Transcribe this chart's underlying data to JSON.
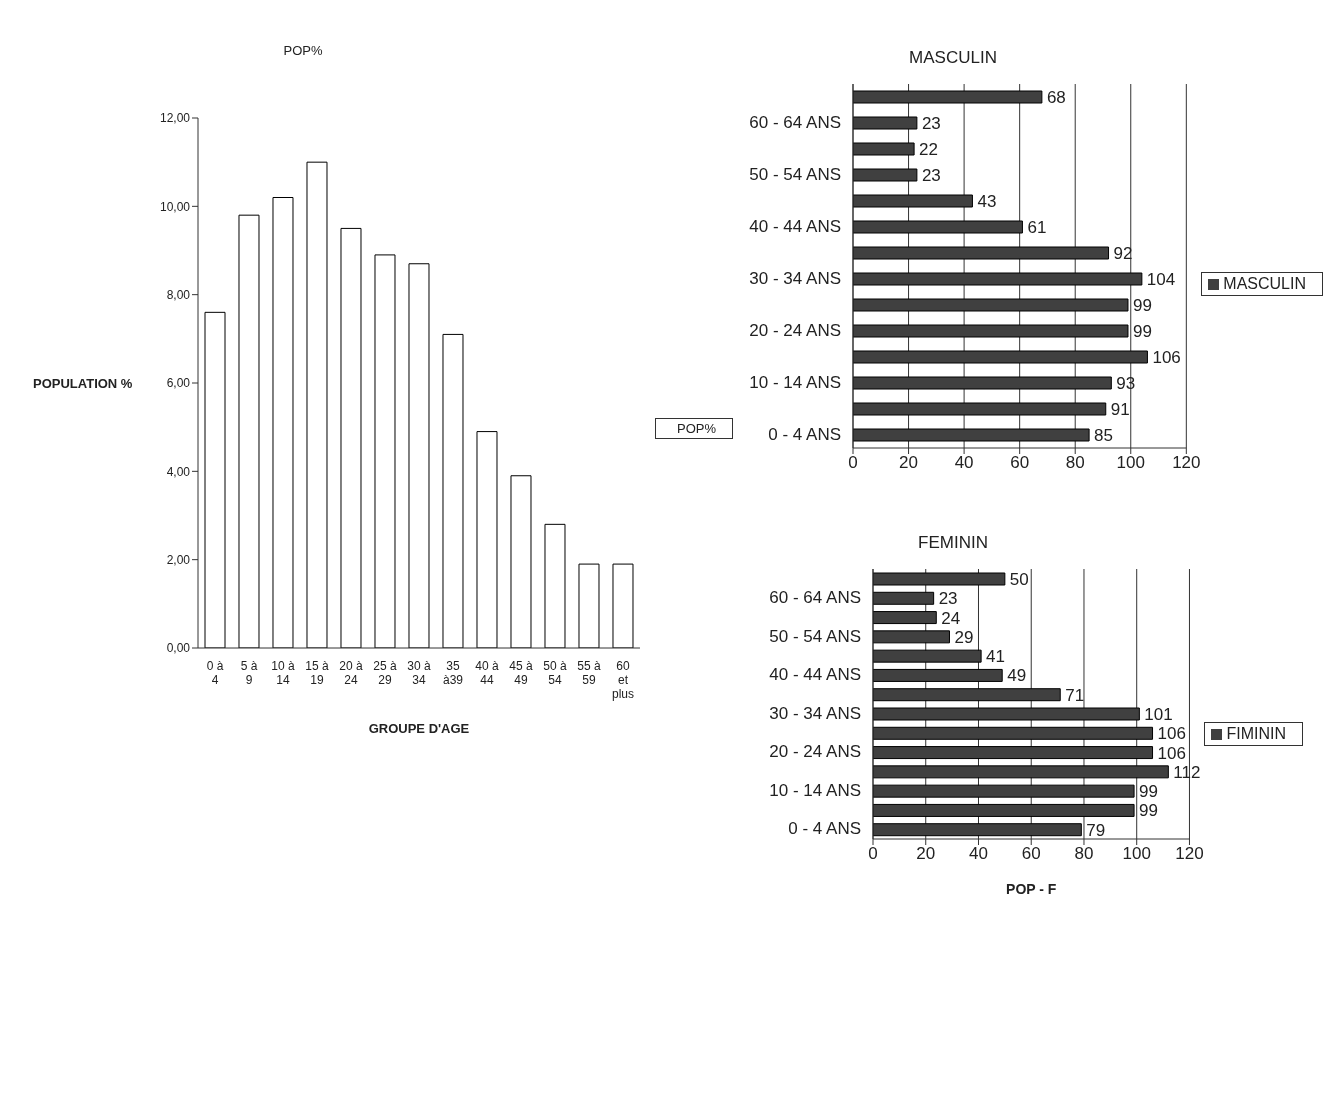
{
  "chart_data": [
    {
      "type": "bar",
      "title": "POP%",
      "xlabel": "GROUPE D'AGE",
      "ylabel": "POPULATION %",
      "categories": [
        "0 à 4",
        "5 à 9",
        "10 à 14",
        "15 à 19",
        "20 à 24",
        "25 à 29",
        "30 à 34",
        "35 à39",
        "40 à 44",
        "45 à 49",
        "50 à 54",
        "55 à 59",
        "60 et plus"
      ],
      "series": [
        {
          "name": "POP%",
          "color": "#ffffff",
          "values": [
            7.6,
            9.8,
            10.2,
            11.0,
            9.5,
            8.9,
            8.7,
            7.1,
            4.9,
            3.9,
            2.8,
            1.9,
            1.9
          ]
        }
      ],
      "ylim": [
        0,
        12
      ],
      "yticks": [
        {
          "value": 0,
          "label": "0,00"
        },
        {
          "value": 2,
          "label": "2,00"
        },
        {
          "value": 4,
          "label": "4,00"
        },
        {
          "value": 6,
          "label": "6,00"
        },
        {
          "value": 8,
          "label": "8,00"
        },
        {
          "value": 10,
          "label": "10,00"
        },
        {
          "value": 12,
          "label": "12,00"
        }
      ],
      "grid": false,
      "legend": "right"
    },
    {
      "type": "bar",
      "orientation": "horizontal",
      "title": "MASCULIN",
      "categories": [
        null,
        "60 - 64 ANS",
        null,
        "50 - 54 ANS",
        null,
        "40 - 44 ANS",
        null,
        "30 - 34 ANS",
        null,
        "20 - 24 ANS",
        null,
        "10 - 14 ANS",
        null,
        "0 - 4 ANS"
      ],
      "series": [
        {
          "name": "MASCULIN",
          "color": "#404040",
          "values": [
            68,
            23,
            22,
            23,
            43,
            61,
            92,
            104,
            99,
            99,
            106,
            93,
            91,
            85
          ]
        }
      ],
      "xlim": [
        0,
        120
      ],
      "xticks": [
        0,
        20,
        40,
        60,
        80,
        100,
        120
      ],
      "grid": "x",
      "legend": "right",
      "data_labels": true
    },
    {
      "type": "bar",
      "orientation": "horizontal",
      "title": "FEMININ",
      "xlabel": "POP - F",
      "categories": [
        null,
        "60 - 64 ANS",
        null,
        "50 - 54 ANS",
        null,
        "40 - 44 ANS",
        null,
        "30 - 34 ANS",
        null,
        "20 - 24 ANS",
        null,
        "10 - 14 ANS",
        null,
        "0 - 4 ANS"
      ],
      "series": [
        {
          "name": "FIMININ",
          "color": "#404040",
          "values": [
            50,
            23,
            24,
            29,
            41,
            49,
            71,
            101,
            106,
            106,
            112,
            99,
            99,
            79
          ]
        }
      ],
      "xlim": [
        0,
        120
      ],
      "xticks": [
        0,
        20,
        40,
        60,
        80,
        100,
        120
      ],
      "grid": "x",
      "legend": "right",
      "data_labels": true
    }
  ]
}
